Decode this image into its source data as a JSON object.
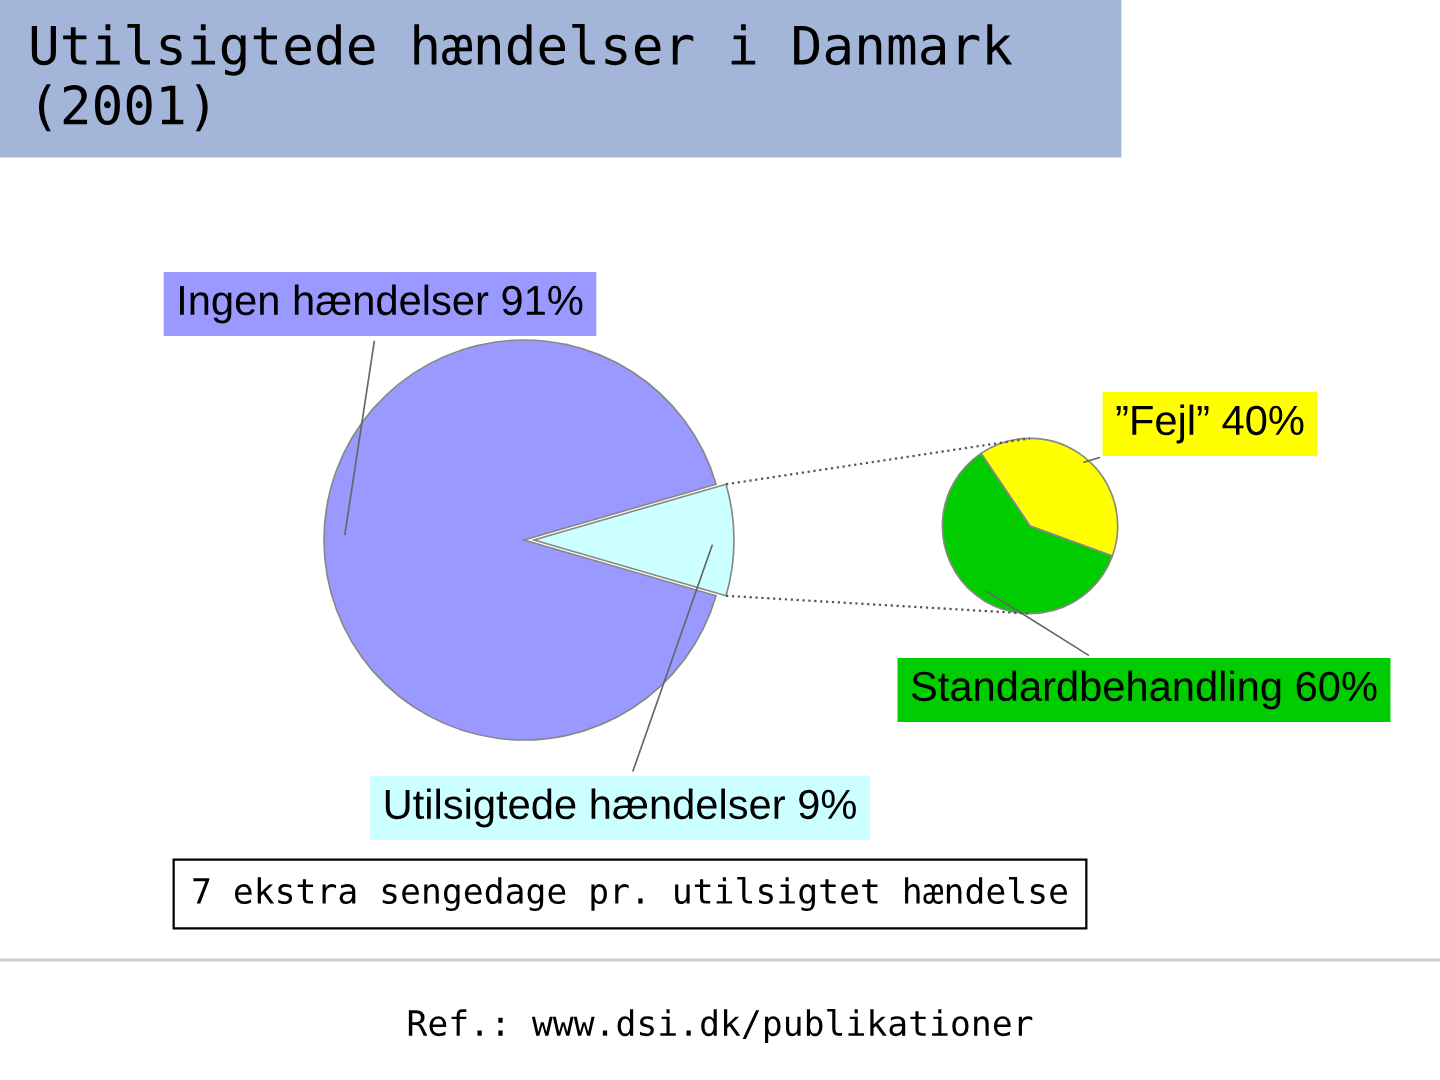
{
  "chart_data": [
    {
      "type": "pie",
      "title": "Utilsigtede hændelser i Danmark\n(2001)",
      "categories": [
        "Ingen hændelser",
        "Utilsigtede hændelser"
      ],
      "values": [
        91,
        9
      ],
      "value_labels": [
        "91%",
        "9%"
      ],
      "colors": [
        "#9999ff",
        "#ccffff"
      ],
      "annotations": [
        "7 ekstra sengedage pr. utilsigtet hændelse",
        "Ref.: www.dsi.dk/publikationer"
      ]
    },
    {
      "type": "pie",
      "categories": [
        "”Fejl”",
        "Standardbehandling"
      ],
      "values": [
        40,
        60
      ],
      "value_labels": [
        "40%",
        "60%"
      ],
      "colors": [
        "#ffff00",
        "#00cc00"
      ]
    }
  ]
}
